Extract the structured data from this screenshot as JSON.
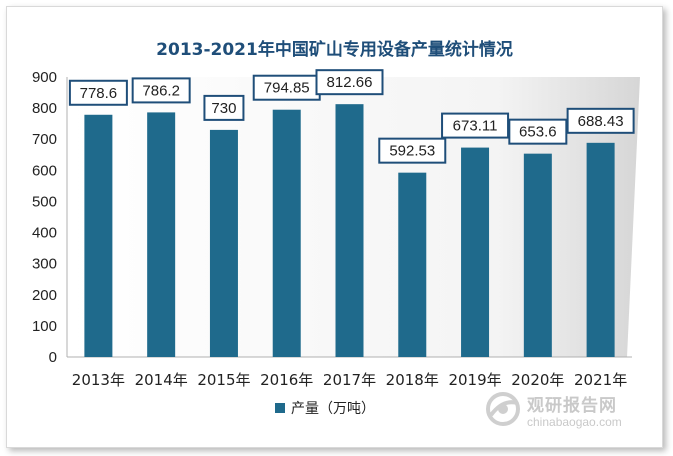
{
  "chart_data": {
    "type": "bar",
    "title": "2013-2021年中国矿山专用设备产量统计情况",
    "categories": [
      "2013年",
      "2014年",
      "2015年",
      "2016年",
      "2017年",
      "2018年",
      "2019年",
      "2020年",
      "2021年"
    ],
    "series": [
      {
        "name": "产量（万吨）",
        "values": [
          778.6,
          786.2,
          730,
          794.85,
          812.66,
          592.53,
          673.11,
          653.6,
          688.43
        ],
        "labels": [
          "778.6",
          "786.2",
          "730",
          "794.85",
          "812.66",
          "592.53",
          "673.11",
          "653.6",
          "688.43"
        ]
      }
    ],
    "xlabel": "",
    "ylabel": "",
    "ylim": [
      0,
      900
    ],
    "yticks": [
      "0",
      "100",
      "200",
      "300",
      "400",
      "500",
      "600",
      "700",
      "800",
      "900"
    ],
    "grid": false,
    "legend": "bottom",
    "colors": {
      "bar": "#1f6a8c",
      "title": "#1f4e79",
      "label_border": "#1f4e79",
      "plot_back": "#e3e3e3"
    }
  },
  "watermark": {
    "name": "观研报告网",
    "url": "chinabaogao.com",
    "logo_icon": "chinabaogao-logo-icon"
  }
}
